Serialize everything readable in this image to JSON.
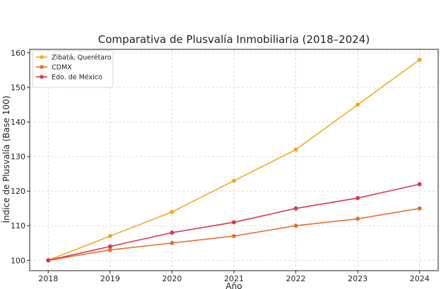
{
  "chart_data": {
    "type": "line",
    "title": "Comparativa de Plusvalía Inmobiliaria (2018–2024)",
    "xlabel": "Año",
    "ylabel": "Índice de Plusvalía (Base 100)",
    "x": [
      2018,
      2019,
      2020,
      2021,
      2022,
      2023,
      2024
    ],
    "xlim": [
      2017.7,
      2024.3
    ],
    "ylim": [
      97,
      161
    ],
    "yticks": [
      100,
      110,
      120,
      130,
      140,
      150,
      160
    ],
    "grid": true,
    "legend_position": "top-left",
    "series": [
      {
        "name": "Zibatá, Querétaro",
        "color": "#f4a81d",
        "values": [
          100,
          107,
          114,
          123,
          132,
          145,
          158
        ]
      },
      {
        "name": "CDMX",
        "color": "#e8702a",
        "values": [
          100,
          103,
          105,
          107,
          110,
          112,
          115
        ]
      },
      {
        "name": "Edo. de México",
        "color": "#dc3553",
        "values": [
          100,
          104,
          108,
          111,
          115,
          118,
          122
        ]
      }
    ]
  }
}
